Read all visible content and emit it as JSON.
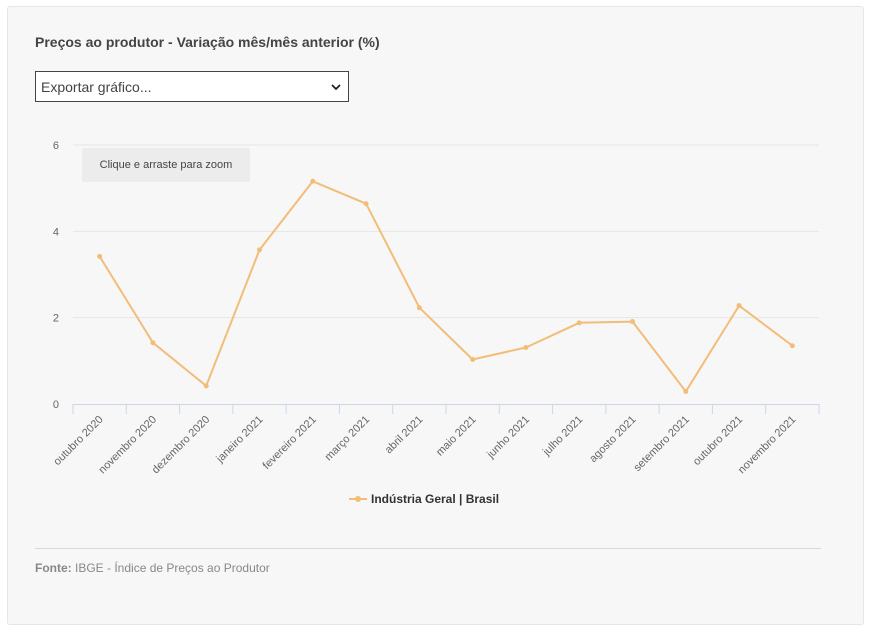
{
  "header": {
    "title": "Preços ao produtor - Variação mês/mês anterior (%)"
  },
  "export_select": {
    "selected": "Exportar gráfico...",
    "icon": "chevron-down-icon"
  },
  "zoom_hint": "Clique e arraste para zoom",
  "footer": {
    "source_label": "Fonte:",
    "source_text": "IBGE - Índice de Preços ao Produtor"
  },
  "colors": {
    "series": "#f2bd78",
    "grid": "#e6e6e6",
    "axis": "#ccd6eb",
    "background": "#f7f7f7"
  },
  "chart_data": {
    "type": "line",
    "title": "Preços ao produtor - Variação mês/mês anterior (%)",
    "xlabel": "",
    "ylabel": "",
    "ylim": [
      0,
      6
    ],
    "yticks": [
      0,
      2,
      4,
      6
    ],
    "grid": true,
    "legend_position": "bottom-center",
    "categories": [
      "outubro 2020",
      "novembro 2020",
      "dezembro 2020",
      "janeiro 2021",
      "fevereiro 2021",
      "março 2021",
      "abril 2021",
      "maio 2021",
      "junho 2021",
      "julho 2021",
      "agosto 2021",
      "setembro 2021",
      "outubro 2021",
      "novembro 2021"
    ],
    "series": [
      {
        "name": "Indústria Geral | Brasil",
        "values": [
          3.42,
          1.42,
          0.42,
          3.57,
          5.16,
          4.64,
          2.23,
          1.03,
          1.31,
          1.88,
          1.91,
          0.29,
          2.28,
          1.35
        ]
      }
    ]
  }
}
